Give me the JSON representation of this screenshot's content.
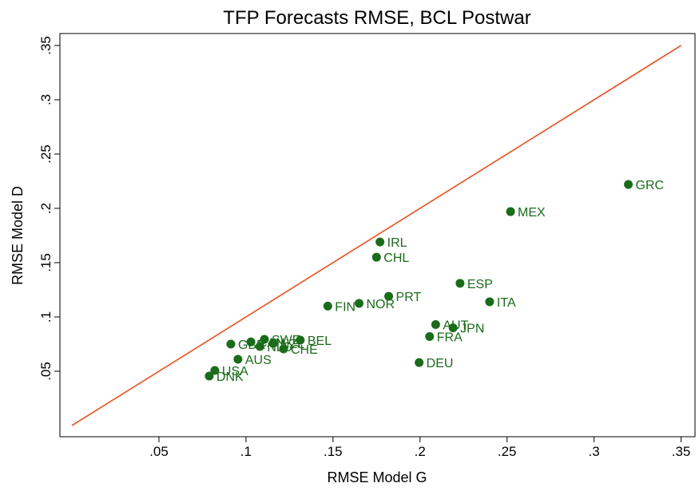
{
  "chart_data": {
    "type": "scatter",
    "title": "TFP Forecasts RMSE, BCL Postwar",
    "x_label": "RMSE Model G",
    "y_label": "RMSE Model D",
    "color": "#1a6b1a",
    "x": [
      0.3197,
      0.252,
      0.177,
      0.175,
      0.223,
      0.182,
      0.24,
      0.147,
      0.165,
      0.209,
      0.219,
      0.2055,
      0.1995,
      0.0913,
      0.1028,
      0.1106,
      0.108,
      0.1156,
      0.1216,
      0.1312,
      0.0954,
      0.0821,
      0.0789
    ],
    "values": [
      0.222,
      0.197,
      0.169,
      0.155,
      0.131,
      0.119,
      0.114,
      0.11,
      0.1125,
      0.093,
      0.09,
      0.082,
      0.058,
      0.075,
      0.077,
      0.0794,
      0.0728,
      0.0757,
      0.0706,
      0.0787,
      0.061,
      0.0507,
      0.0456
    ],
    "point_labels": [
      "GRC",
      "MEX",
      "IRL",
      "CHL",
      "ESP",
      "PRT",
      "ITA",
      "FIN",
      "NOR",
      "AUT",
      "JPN",
      "FRA",
      "DEU",
      "GBR",
      "CAN",
      "SWE",
      "NLD",
      "NZL",
      "CHE",
      "BEL",
      "AUS",
      "USA",
      "DNK"
    ],
    "reference_line": {
      "x": [
        0,
        0.35
      ],
      "y": [
        0,
        0.35
      ],
      "color": "#e8501c"
    },
    "xlim": [
      -0.0069,
      0.358
    ],
    "ylim": [
      -0.0103,
      0.361
    ],
    "xticks": [
      {
        "value": 0.05,
        "label": ".05"
      },
      {
        "value": 0.1,
        "label": ".1"
      },
      {
        "value": 0.15,
        "label": ".15"
      },
      {
        "value": 0.2,
        "label": ".2"
      },
      {
        "value": 0.25,
        "label": ".25"
      },
      {
        "value": 0.3,
        "label": ".3"
      },
      {
        "value": 0.35,
        "label": ".35"
      }
    ],
    "yticks": [
      {
        "value": 0.05,
        "label": ".05"
      },
      {
        "value": 0.1,
        "label": ".1"
      },
      {
        "value": 0.15,
        "label": ".15"
      },
      {
        "value": 0.2,
        "label": ".2"
      },
      {
        "value": 0.25,
        "label": ".25"
      },
      {
        "value": 0.3,
        "label": ".3"
      },
      {
        "value": 0.35,
        "label": ".35"
      }
    ]
  }
}
